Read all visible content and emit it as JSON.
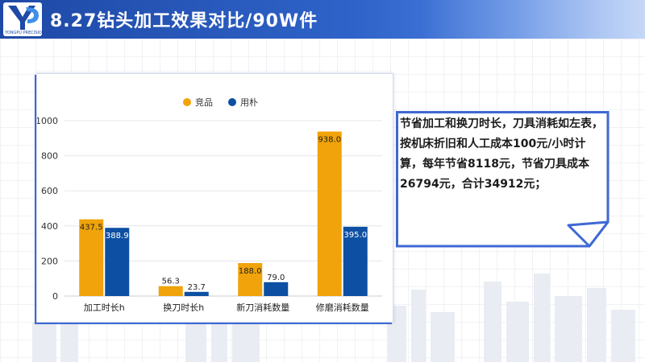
{
  "header": {
    "title": "8.27钻头加工效果对比/90W件",
    "logo_text": "YONGPU PRECISION"
  },
  "note": {
    "text": "节省加工和换刀时长，刀具消耗如左表，按机床折旧和人工成本100元/小时计算，每年节省8118元，节省刀具成本26794元，合计34912元；"
  },
  "colors": {
    "series_a": "#f0a30a",
    "series_b": "#0d4fa3",
    "header": "#1e49a6",
    "accent": "#3e68d4"
  },
  "chart_data": {
    "type": "bar",
    "categories": [
      "加工时长h",
      "换刀时长h",
      "新刀消耗数量",
      "修磨消耗数量"
    ],
    "series": [
      {
        "name": "竞品",
        "values": [
          437.5,
          56.3,
          188.0,
          938.0
        ],
        "labels": [
          "437.5",
          "56.3",
          "188.0",
          "938.0"
        ]
      },
      {
        "name": "用朴",
        "values": [
          388.9,
          23.7,
          79.0,
          395.0
        ],
        "labels": [
          "388.9",
          "23.7",
          "79.0",
          "395.0"
        ]
      }
    ],
    "ylim": [
      0,
      1000
    ],
    "yticks": [
      "0",
      "200",
      "400",
      "600",
      "800",
      "1000"
    ],
    "grid": true,
    "legend_position": "top"
  }
}
